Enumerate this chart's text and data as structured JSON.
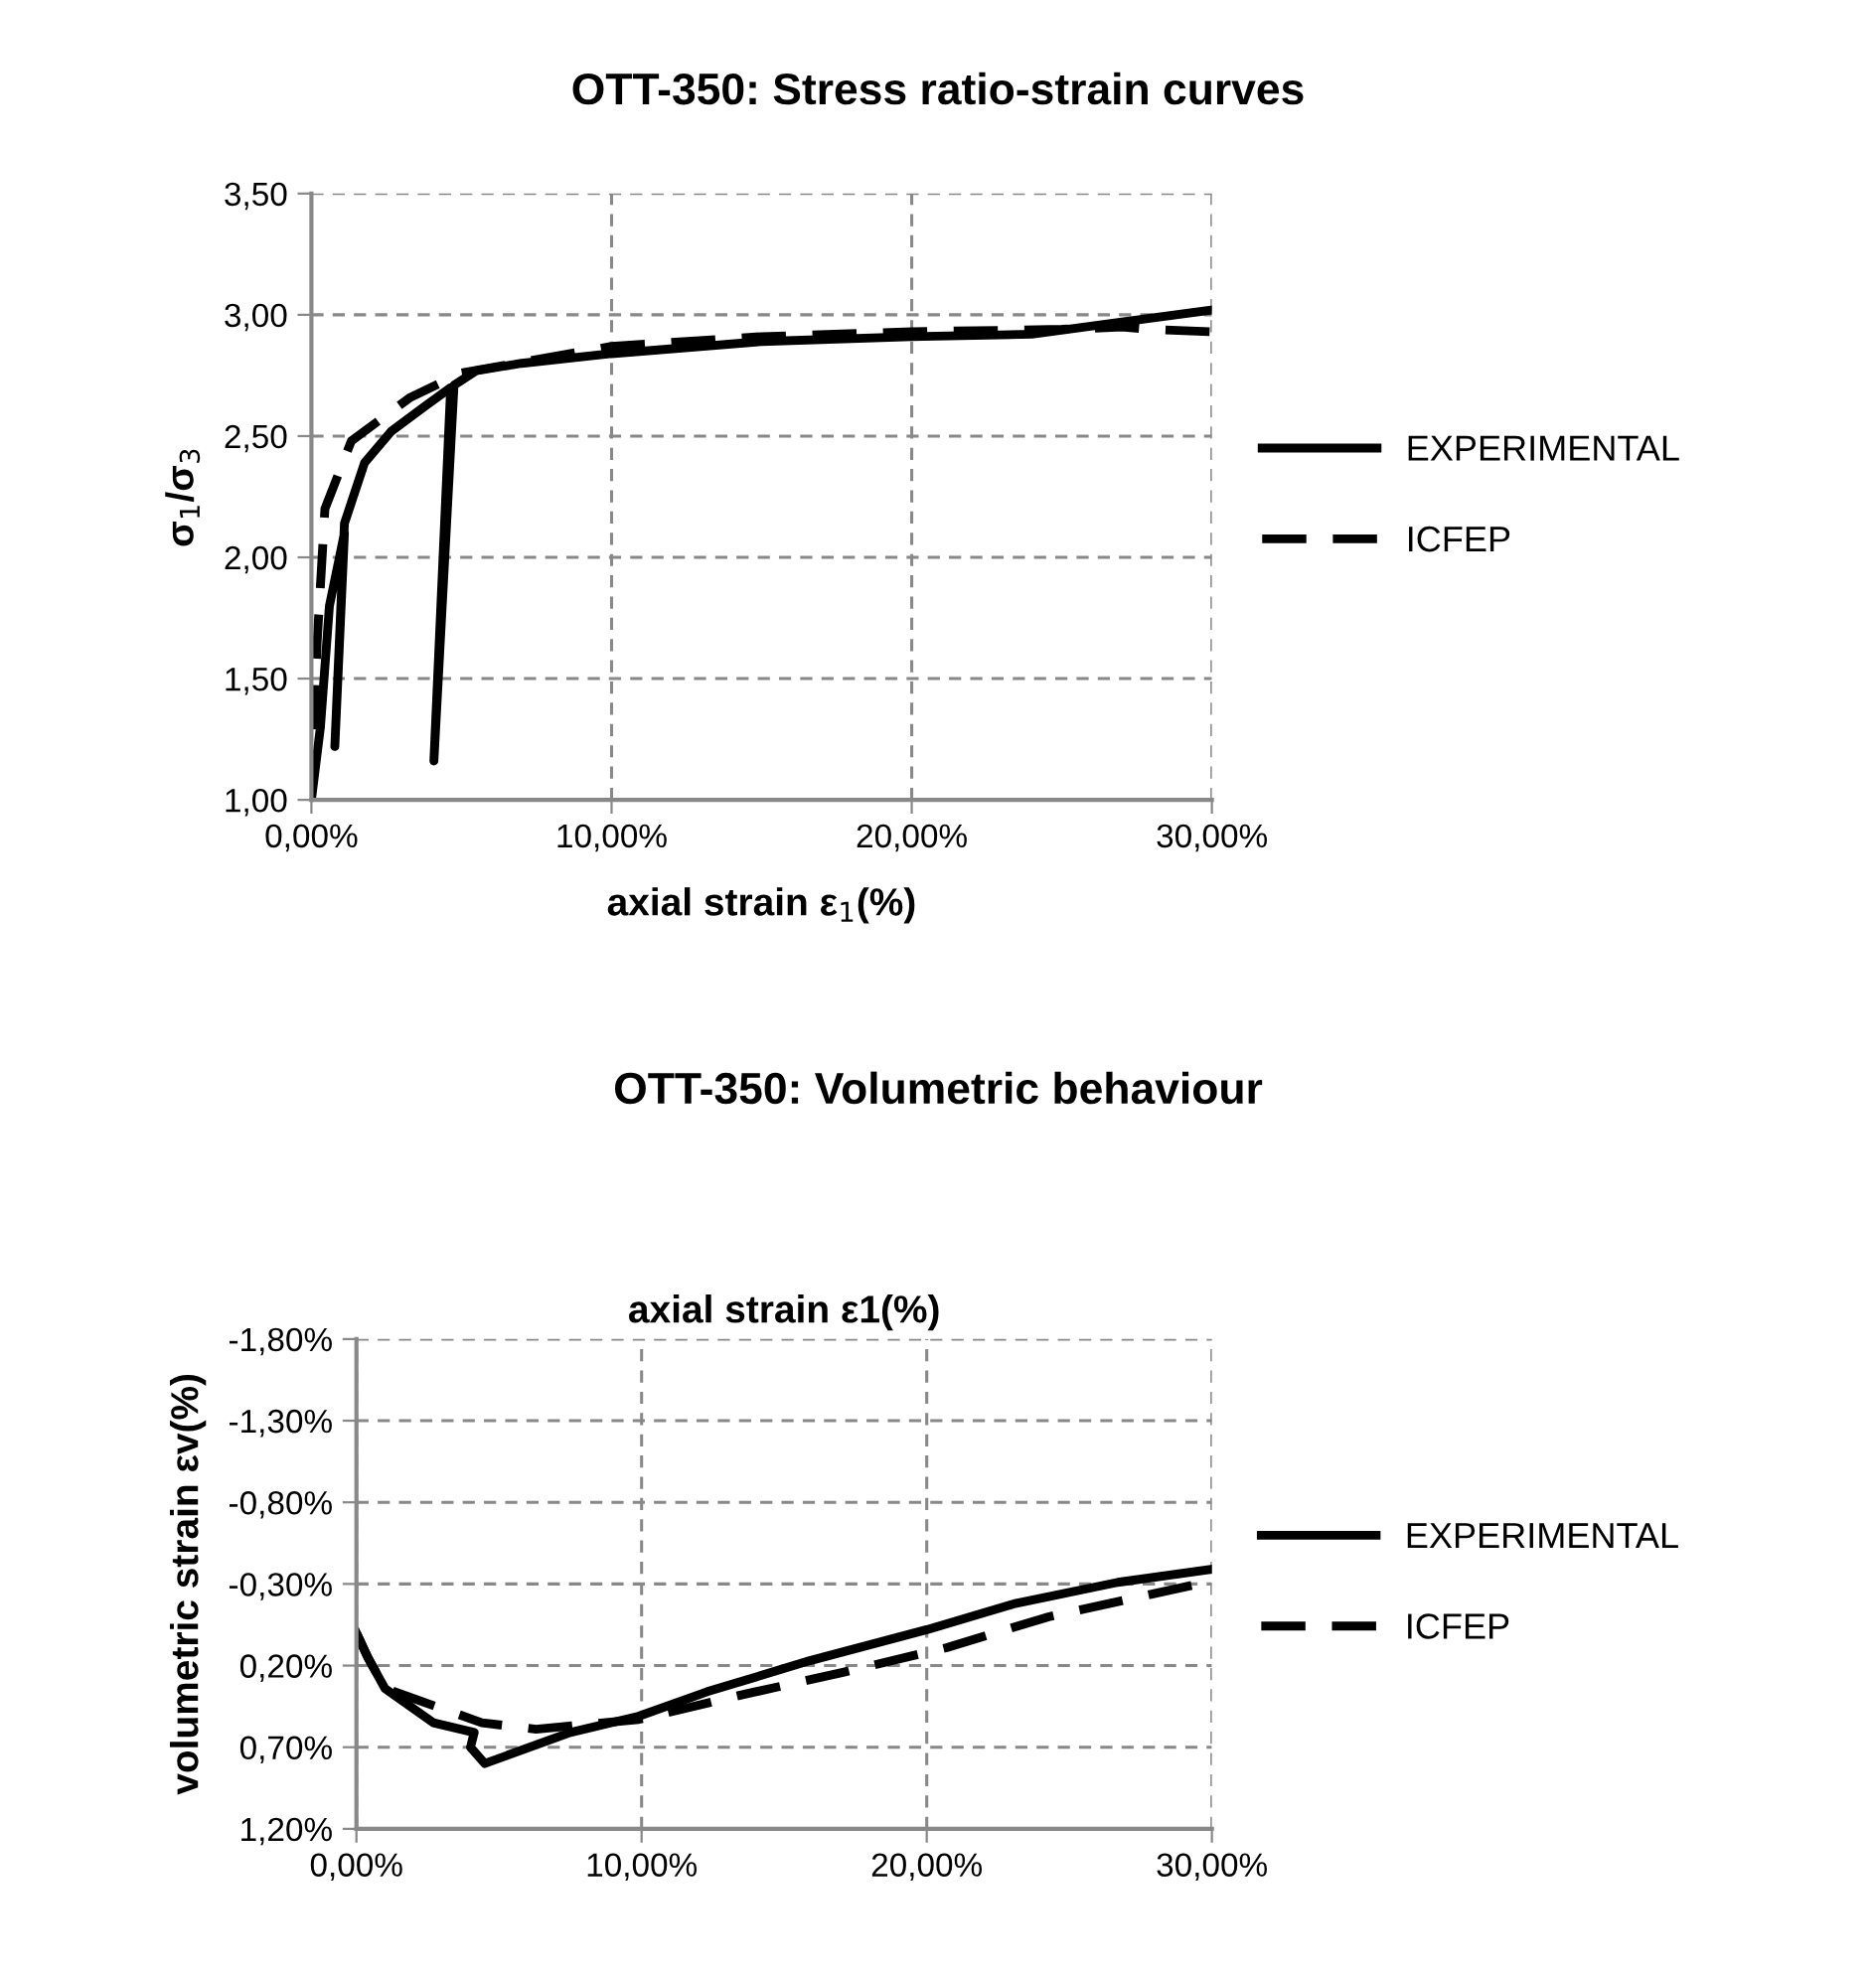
{
  "chart_data": [
    {
      "type": "line",
      "title": "OTT-350: Stress ratio-strain curves",
      "xlabel": "axial strain ε$_{1}$(%)",
      "ylabel": "σ$_{1}$/σ$_{3}$",
      "xlim": [
        0,
        30
      ],
      "xticks": [
        {
          "value": 0,
          "label": "0,00%"
        },
        {
          "value": 10,
          "label": "10,00%"
        },
        {
          "value": 20,
          "label": "20,00%"
        },
        {
          "value": 30,
          "label": "30,00%"
        }
      ],
      "ylim": [
        1,
        3.5
      ],
      "yticks": [
        {
          "value": 1,
          "label": "1,00"
        },
        {
          "value": 1.5,
          "label": "1,50"
        },
        {
          "value": 2,
          "label": "2,00"
        },
        {
          "value": 2.5,
          "label": "2,50"
        },
        {
          "value": 3,
          "label": "3,00"
        },
        {
          "value": 3.5,
          "label": "3,50"
        }
      ],
      "grid": true,
      "legend": "right",
      "series": [
        {
          "name": "EXPERIMENTAL",
          "color": "#000000",
          "line_style": "solid",
          "x": [
            0,
            0.3,
            0.6,
            1.1,
            0.78,
            1.1,
            1.77,
            2.66,
            3.75,
            4.64,
            4.08,
            4.75,
            5.5,
            7,
            10,
            15,
            20,
            24,
            27,
            30
          ],
          "values": [
            1.0,
            1.3,
            1.8,
            2.1,
            1.22,
            2.14,
            2.39,
            2.52,
            2.62,
            2.7,
            1.16,
            2.71,
            2.77,
            2.8,
            2.84,
            2.89,
            2.91,
            2.92,
            2.97,
            3.02
          ]
        },
        {
          "name": "ICFEP",
          "color": "#000000",
          "line_style": "dashed",
          "x": [
            0,
            0.19,
            0.45,
            1.33,
            3.3,
            5,
            10,
            15,
            20,
            25,
            27,
            28,
            30
          ],
          "values": [
            1.0,
            1.65,
            2.2,
            2.48,
            2.66,
            2.76,
            2.87,
            2.91,
            2.93,
            2.94,
            2.95,
            2.94,
            2.93
          ]
        }
      ]
    },
    {
      "type": "line",
      "title": "OTT-350: Volumetric behaviour",
      "xlabel": "axial strain ε1(%)",
      "ylabel": "volumetric strain εv(%)",
      "xlim": [
        0,
        30
      ],
      "xticks": [
        {
          "value": 0,
          "label": "0,00%"
        },
        {
          "value": 10,
          "label": "10,00%"
        },
        {
          "value": 20,
          "label": "20,00%"
        },
        {
          "value": 30,
          "label": "30,00%"
        }
      ],
      "ylim": [
        1.2,
        -1.8
      ],
      "yticks": [
        {
          "value": -1.8,
          "label": "-1,80%"
        },
        {
          "value": -1.3,
          "label": "-1,30%"
        },
        {
          "value": -0.8,
          "label": "-0,80%"
        },
        {
          "value": -0.3,
          "label": "-0,30%"
        },
        {
          "value": 0.2,
          "label": "0,20%"
        },
        {
          "value": 0.7,
          "label": "0,70%"
        },
        {
          "value": 1.2,
          "label": "1,20%"
        }
      ],
      "grid": true,
      "legend": "right",
      "series": [
        {
          "name": "EXPERIMENTAL",
          "color": "#000000",
          "line_style": "solid",
          "x": [
            0,
            0.4,
            1.0,
            2.7,
            4.13,
            4.0,
            4.5,
            7.5,
            9.9,
            12.3,
            15.9,
            20,
            23.1,
            26.7,
            30
          ],
          "values": [
            0.0,
            0.15,
            0.34,
            0.55,
            0.61,
            0.7,
            0.8,
            0.61,
            0.51,
            0.36,
            0.17,
            -0.02,
            -0.18,
            -0.31,
            -0.39
          ]
        },
        {
          "name": "ICFEP",
          "color": "#000000",
          "line_style": "dashed",
          "x": [
            0,
            0.4,
            1.0,
            4.4,
            6.3,
            9.9,
            13.5,
            17.1,
            20.7,
            24.3,
            29.8
          ],
          "values": [
            0.0,
            0.15,
            0.34,
            0.55,
            0.59,
            0.53,
            0.38,
            0.24,
            0.09,
            -0.1,
            -0.31
          ]
        }
      ]
    }
  ]
}
